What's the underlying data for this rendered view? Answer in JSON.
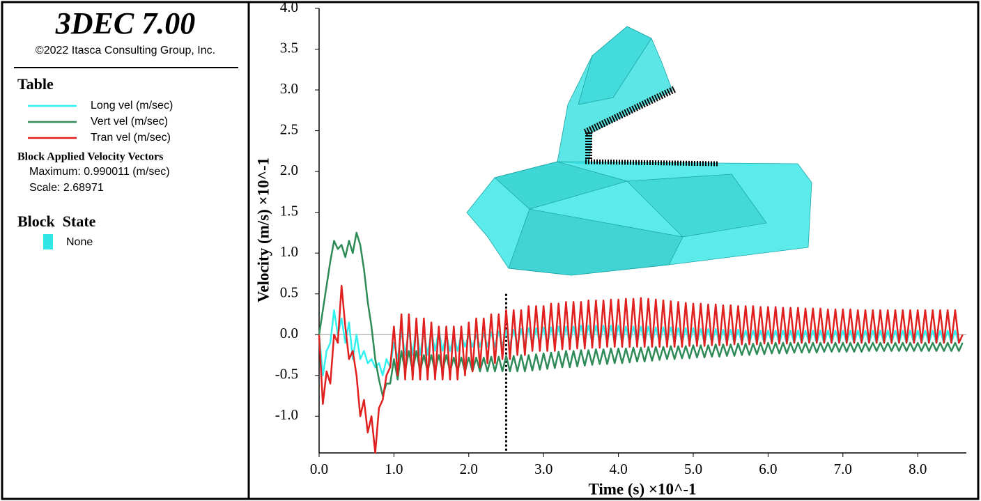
{
  "panel": {
    "title": "3DEC 7.00",
    "copyright": "©2022 Itasca Consulting Group, Inc.",
    "legend_heading": "Table",
    "vectors_heading": "Block Applied Velocity Vectors",
    "maximum": "Maximum: 0.990011 (m/sec)",
    "scale": "Scale: 2.68971",
    "state_heading": "Block  State",
    "state_item": "None",
    "state_color": "#33e6e6"
  },
  "chart_data": {
    "type": "line",
    "xlabel": "Time (s) ×10^-1",
    "ylabel": "Velocity (m/s) ×10^-1",
    "xlim": [
      0,
      8.65
    ],
    "ylim": [
      -1.45,
      4.0
    ],
    "xticks": [
      {
        "value": 0,
        "label": "0.0"
      },
      {
        "value": 1,
        "label": "1.0"
      },
      {
        "value": 2,
        "label": "2.0"
      },
      {
        "value": 3,
        "label": "3.0"
      },
      {
        "value": 4,
        "label": "4.0"
      },
      {
        "value": 5,
        "label": "5.0"
      },
      {
        "value": 6,
        "label": "6.0"
      },
      {
        "value": 7,
        "label": "7.0"
      },
      {
        "value": 8,
        "label": "8.0"
      }
    ],
    "yticks": [
      {
        "value": -1,
        "label": "-1.0"
      },
      -0.5,
      {
        "value": 0,
        "label": "0.0"
      },
      0.5,
      {
        "value": 1,
        "label": "1.0"
      },
      1.5,
      {
        "value": 2,
        "label": "2.0"
      },
      2.5,
      {
        "value": 3,
        "label": "3.0"
      },
      3.5,
      {
        "value": 4,
        "label": "4.0"
      }
    ],
    "time_marker": 2.5,
    "x": [
      0,
      0.05,
      0.1,
      0.15,
      0.2,
      0.25,
      0.3,
      0.35,
      0.4,
      0.45,
      0.5,
      0.55,
      0.6,
      0.65,
      0.7,
      0.75,
      0.8,
      0.85,
      0.9,
      0.95,
      1,
      1.05,
      1.1,
      1.15,
      1.2,
      1.25,
      1.3,
      1.35,
      1.4,
      1.45,
      1.5,
      1.55,
      1.6,
      1.65,
      1.7,
      1.75,
      1.8,
      1.85,
      1.9,
      1.95,
      2,
      2.05,
      2.1,
      2.15,
      2.2,
      2.25,
      2.3,
      2.35,
      2.4,
      2.45,
      2.5,
      2.55,
      2.6,
      2.65,
      2.7,
      2.75,
      2.8,
      2.85,
      2.9,
      2.95,
      3,
      3.05,
      3.1,
      3.15,
      3.2,
      3.25,
      3.3,
      3.35,
      3.4,
      3.45,
      3.5,
      3.55,
      3.6,
      3.65,
      3.7,
      3.75,
      3.8,
      3.85,
      3.9,
      3.95,
      4,
      4.05,
      4.1,
      4.15,
      4.2,
      4.25,
      4.3,
      4.35,
      4.4,
      4.45,
      4.5,
      4.55,
      4.6,
      4.65,
      4.7,
      4.75,
      4.8,
      4.85,
      4.9,
      4.95,
      5,
      5.05,
      5.1,
      5.15,
      5.2,
      5.25,
      5.3,
      5.35,
      5.4,
      5.45,
      5.5,
      5.55,
      5.6,
      5.65,
      5.7,
      5.75,
      5.8,
      5.85,
      5.9,
      5.95,
      6,
      6.05,
      6.1,
      6.15,
      6.2,
      6.25,
      6.3,
      6.35,
      6.4,
      6.45,
      6.5,
      6.55,
      6.6,
      6.65,
      6.7,
      6.75,
      6.8,
      6.85,
      6.9,
      6.95,
      7,
      7.05,
      7.1,
      7.15,
      7.2,
      7.25,
      7.3,
      7.35,
      7.4,
      7.45,
      7.5,
      7.55,
      7.6,
      7.65,
      7.7,
      7.75,
      7.8,
      7.85,
      7.9,
      7.95,
      8,
      8.05,
      8.1,
      8.15,
      8.2,
      8.25,
      8.3,
      8.35,
      8.4,
      8.45,
      8.5,
      8.55,
      8.6
    ],
    "series": [
      {
        "name": "Long vel (m/sec)",
        "color": "#33f0f0",
        "values": [
          0,
          -0.5,
          -0.2,
          -0.1,
          0.3,
          0,
          0.2,
          -0.1,
          0.15,
          -0.3,
          0,
          -0.3,
          -0.2,
          -0.35,
          -0.3,
          -0.4,
          -0.35,
          -0.5,
          -0.3,
          -0.4,
          -0.1,
          -0.3,
          0.05,
          -0.25,
          0.05,
          -0.25,
          0.1,
          -0.25,
          0.05,
          -0.25,
          0.05,
          -0.2,
          0.05,
          -0.2,
          0,
          -0.2,
          0,
          -0.2,
          0,
          -0.15,
          0,
          -0.15,
          0,
          -0.15,
          0.02,
          -0.15,
          0.03,
          -0.15,
          0.04,
          -0.14,
          0.05,
          -0.14,
          0.06,
          -0.13,
          0.07,
          -0.13,
          0.08,
          -0.12,
          0.08,
          -0.12,
          0.09,
          -0.12,
          0.09,
          -0.11,
          0.1,
          -0.11,
          0.1,
          -0.1,
          0.1,
          -0.1,
          0.11,
          -0.1,
          0.11,
          -0.1,
          0.11,
          -0.1,
          0.11,
          -0.1,
          0.11,
          -0.1,
          0.11,
          -0.1,
          0.1,
          -0.1,
          0.1,
          -0.1,
          0.1,
          -0.1,
          0.1,
          -0.1,
          0.09,
          -0.1,
          0.09,
          -0.1,
          0.09,
          -0.1,
          0.08,
          -0.1,
          0.08,
          -0.1,
          0.08,
          -0.1,
          0.07,
          -0.1,
          0.07,
          -0.1,
          0.07,
          -0.1,
          0.06,
          -0.1,
          0.06,
          -0.1,
          0.06,
          -0.1,
          0.05,
          -0.1,
          0.05,
          -0.1,
          0.05,
          -0.1,
          0.05,
          -0.1,
          0.05,
          -0.1,
          0.05,
          -0.1,
          0.05,
          -0.1,
          0.05,
          -0.1,
          0.05,
          -0.1,
          0.05,
          -0.1,
          0.05,
          -0.1,
          0.05,
          -0.1,
          0.05,
          -0.1,
          0.05,
          -0.1,
          0.05,
          -0.1,
          0.05,
          -0.1,
          0.05,
          -0.1,
          0.05,
          -0.1,
          0.05,
          -0.1,
          0.05,
          -0.1,
          0.05,
          -0.1,
          0.05,
          -0.1,
          0.05,
          -0.1,
          0.05,
          -0.1,
          0.05,
          -0.1,
          0.05,
          -0.1,
          0.05,
          -0.1,
          0.05,
          -0.1,
          0.05,
          -0.1,
          0
        ]
      },
      {
        "name": "Vert vel (m/sec)",
        "color": "#2e8b57",
        "values": [
          0,
          0.3,
          0.6,
          0.9,
          1.15,
          1.05,
          1.1,
          0.95,
          1.15,
          1.0,
          1.25,
          1.1,
          0.8,
          0.4,
          0.1,
          -0.3,
          -0.55,
          -0.75,
          -0.6,
          -0.6,
          -0.3,
          -0.55,
          -0.2,
          -0.45,
          -0.2,
          -0.45,
          -0.2,
          -0.45,
          -0.25,
          -0.45,
          -0.25,
          -0.45,
          -0.25,
          -0.45,
          -0.25,
          -0.45,
          -0.28,
          -0.45,
          -0.28,
          -0.45,
          -0.28,
          -0.45,
          -0.28,
          -0.45,
          -0.28,
          -0.45,
          -0.27,
          -0.45,
          -0.27,
          -0.45,
          -0.26,
          -0.45,
          -0.26,
          -0.45,
          -0.25,
          -0.45,
          -0.25,
          -0.44,
          -0.24,
          -0.43,
          -0.23,
          -0.42,
          -0.22,
          -0.41,
          -0.21,
          -0.4,
          -0.2,
          -0.4,
          -0.2,
          -0.39,
          -0.19,
          -0.38,
          -0.19,
          -0.37,
          -0.18,
          -0.36,
          -0.18,
          -0.36,
          -0.17,
          -0.35,
          -0.17,
          -0.35,
          -0.17,
          -0.34,
          -0.16,
          -0.33,
          -0.16,
          -0.33,
          -0.15,
          -0.32,
          -0.15,
          -0.31,
          -0.15,
          -0.3,
          -0.14,
          -0.3,
          -0.14,
          -0.29,
          -0.14,
          -0.29,
          -0.13,
          -0.28,
          -0.13,
          -0.28,
          -0.13,
          -0.27,
          -0.12,
          -0.27,
          -0.12,
          -0.26,
          -0.12,
          -0.26,
          -0.11,
          -0.25,
          -0.11,
          -0.25,
          -0.11,
          -0.24,
          -0.1,
          -0.24,
          -0.1,
          -0.23,
          -0.1,
          -0.23,
          -0.1,
          -0.23,
          -0.1,
          -0.22,
          -0.1,
          -0.22,
          -0.1,
          -0.22,
          -0.1,
          -0.22,
          -0.1,
          -0.21,
          -0.1,
          -0.21,
          -0.1,
          -0.21,
          -0.1,
          -0.21,
          -0.1,
          -0.21,
          -0.1,
          -0.21,
          -0.1,
          -0.2,
          -0.1,
          -0.2,
          -0.1,
          -0.2,
          -0.1,
          -0.2,
          -0.1,
          -0.2,
          -0.1,
          -0.2,
          -0.1,
          -0.2,
          -0.1,
          -0.2,
          -0.1,
          -0.2,
          -0.1,
          -0.2,
          -0.1,
          -0.2,
          -0.1,
          -0.2,
          -0.1,
          -0.2,
          -0.1
        ]
      },
      {
        "name": "Tran vel (m/sec)",
        "color": "#e0201e",
        "values": [
          0,
          -0.85,
          -0.45,
          -0.6,
          0,
          -0.1,
          0.6,
          0.1,
          -0.3,
          -0.2,
          -0.5,
          -1.0,
          -0.8,
          -1.2,
          -1.0,
          -1.45,
          -0.9,
          -0.8,
          -0.5,
          -0.4,
          0.1,
          -0.5,
          0.25,
          -0.55,
          0.25,
          -0.55,
          0.2,
          -0.55,
          0.2,
          -0.55,
          0.15,
          -0.55,
          0.1,
          -0.55,
          0.1,
          -0.55,
          0.1,
          -0.55,
          0.1,
          -0.5,
          0.15,
          -0.45,
          0.2,
          -0.4,
          0.2,
          -0.35,
          0.25,
          -0.35,
          0.25,
          -0.3,
          0.3,
          -0.3,
          0.3,
          -0.25,
          0.3,
          -0.25,
          0.35,
          -0.2,
          0.35,
          -0.2,
          0.35,
          -0.2,
          0.38,
          -0.2,
          0.38,
          -0.18,
          0.4,
          -0.18,
          0.4,
          -0.17,
          0.4,
          -0.17,
          0.42,
          -0.16,
          0.42,
          -0.16,
          0.42,
          -0.15,
          0.43,
          -0.15,
          0.43,
          -0.15,
          0.44,
          -0.15,
          0.44,
          -0.15,
          0.45,
          -0.15,
          0.44,
          -0.15,
          0.43,
          -0.15,
          0.42,
          -0.15,
          0.41,
          -0.15,
          0.4,
          -0.15,
          0.39,
          -0.14,
          0.38,
          -0.14,
          0.38,
          -0.14,
          0.37,
          -0.13,
          0.37,
          -0.13,
          0.36,
          -0.13,
          0.36,
          -0.12,
          0.35,
          -0.12,
          0.35,
          -0.12,
          0.35,
          -0.12,
          0.34,
          -0.11,
          0.34,
          -0.11,
          0.34,
          -0.11,
          0.33,
          -0.11,
          0.33,
          -0.1,
          0.33,
          -0.1,
          0.32,
          -0.1,
          0.32,
          -0.1,
          0.32,
          -0.1,
          0.31,
          -0.1,
          0.31,
          -0.1,
          0.31,
          -0.1,
          0.31,
          -0.1,
          0.3,
          -0.1,
          0.3,
          -0.1,
          0.3,
          -0.1,
          0.3,
          -0.1,
          0.3,
          -0.1,
          0.3,
          -0.1,
          0.3,
          -0.1,
          0.3,
          -0.1,
          0.3,
          -0.1,
          0.3,
          -0.1,
          0.3,
          -0.1,
          0.3,
          -0.1,
          0.3,
          -0.1,
          0.3,
          -0.1,
          0
        ]
      }
    ]
  }
}
